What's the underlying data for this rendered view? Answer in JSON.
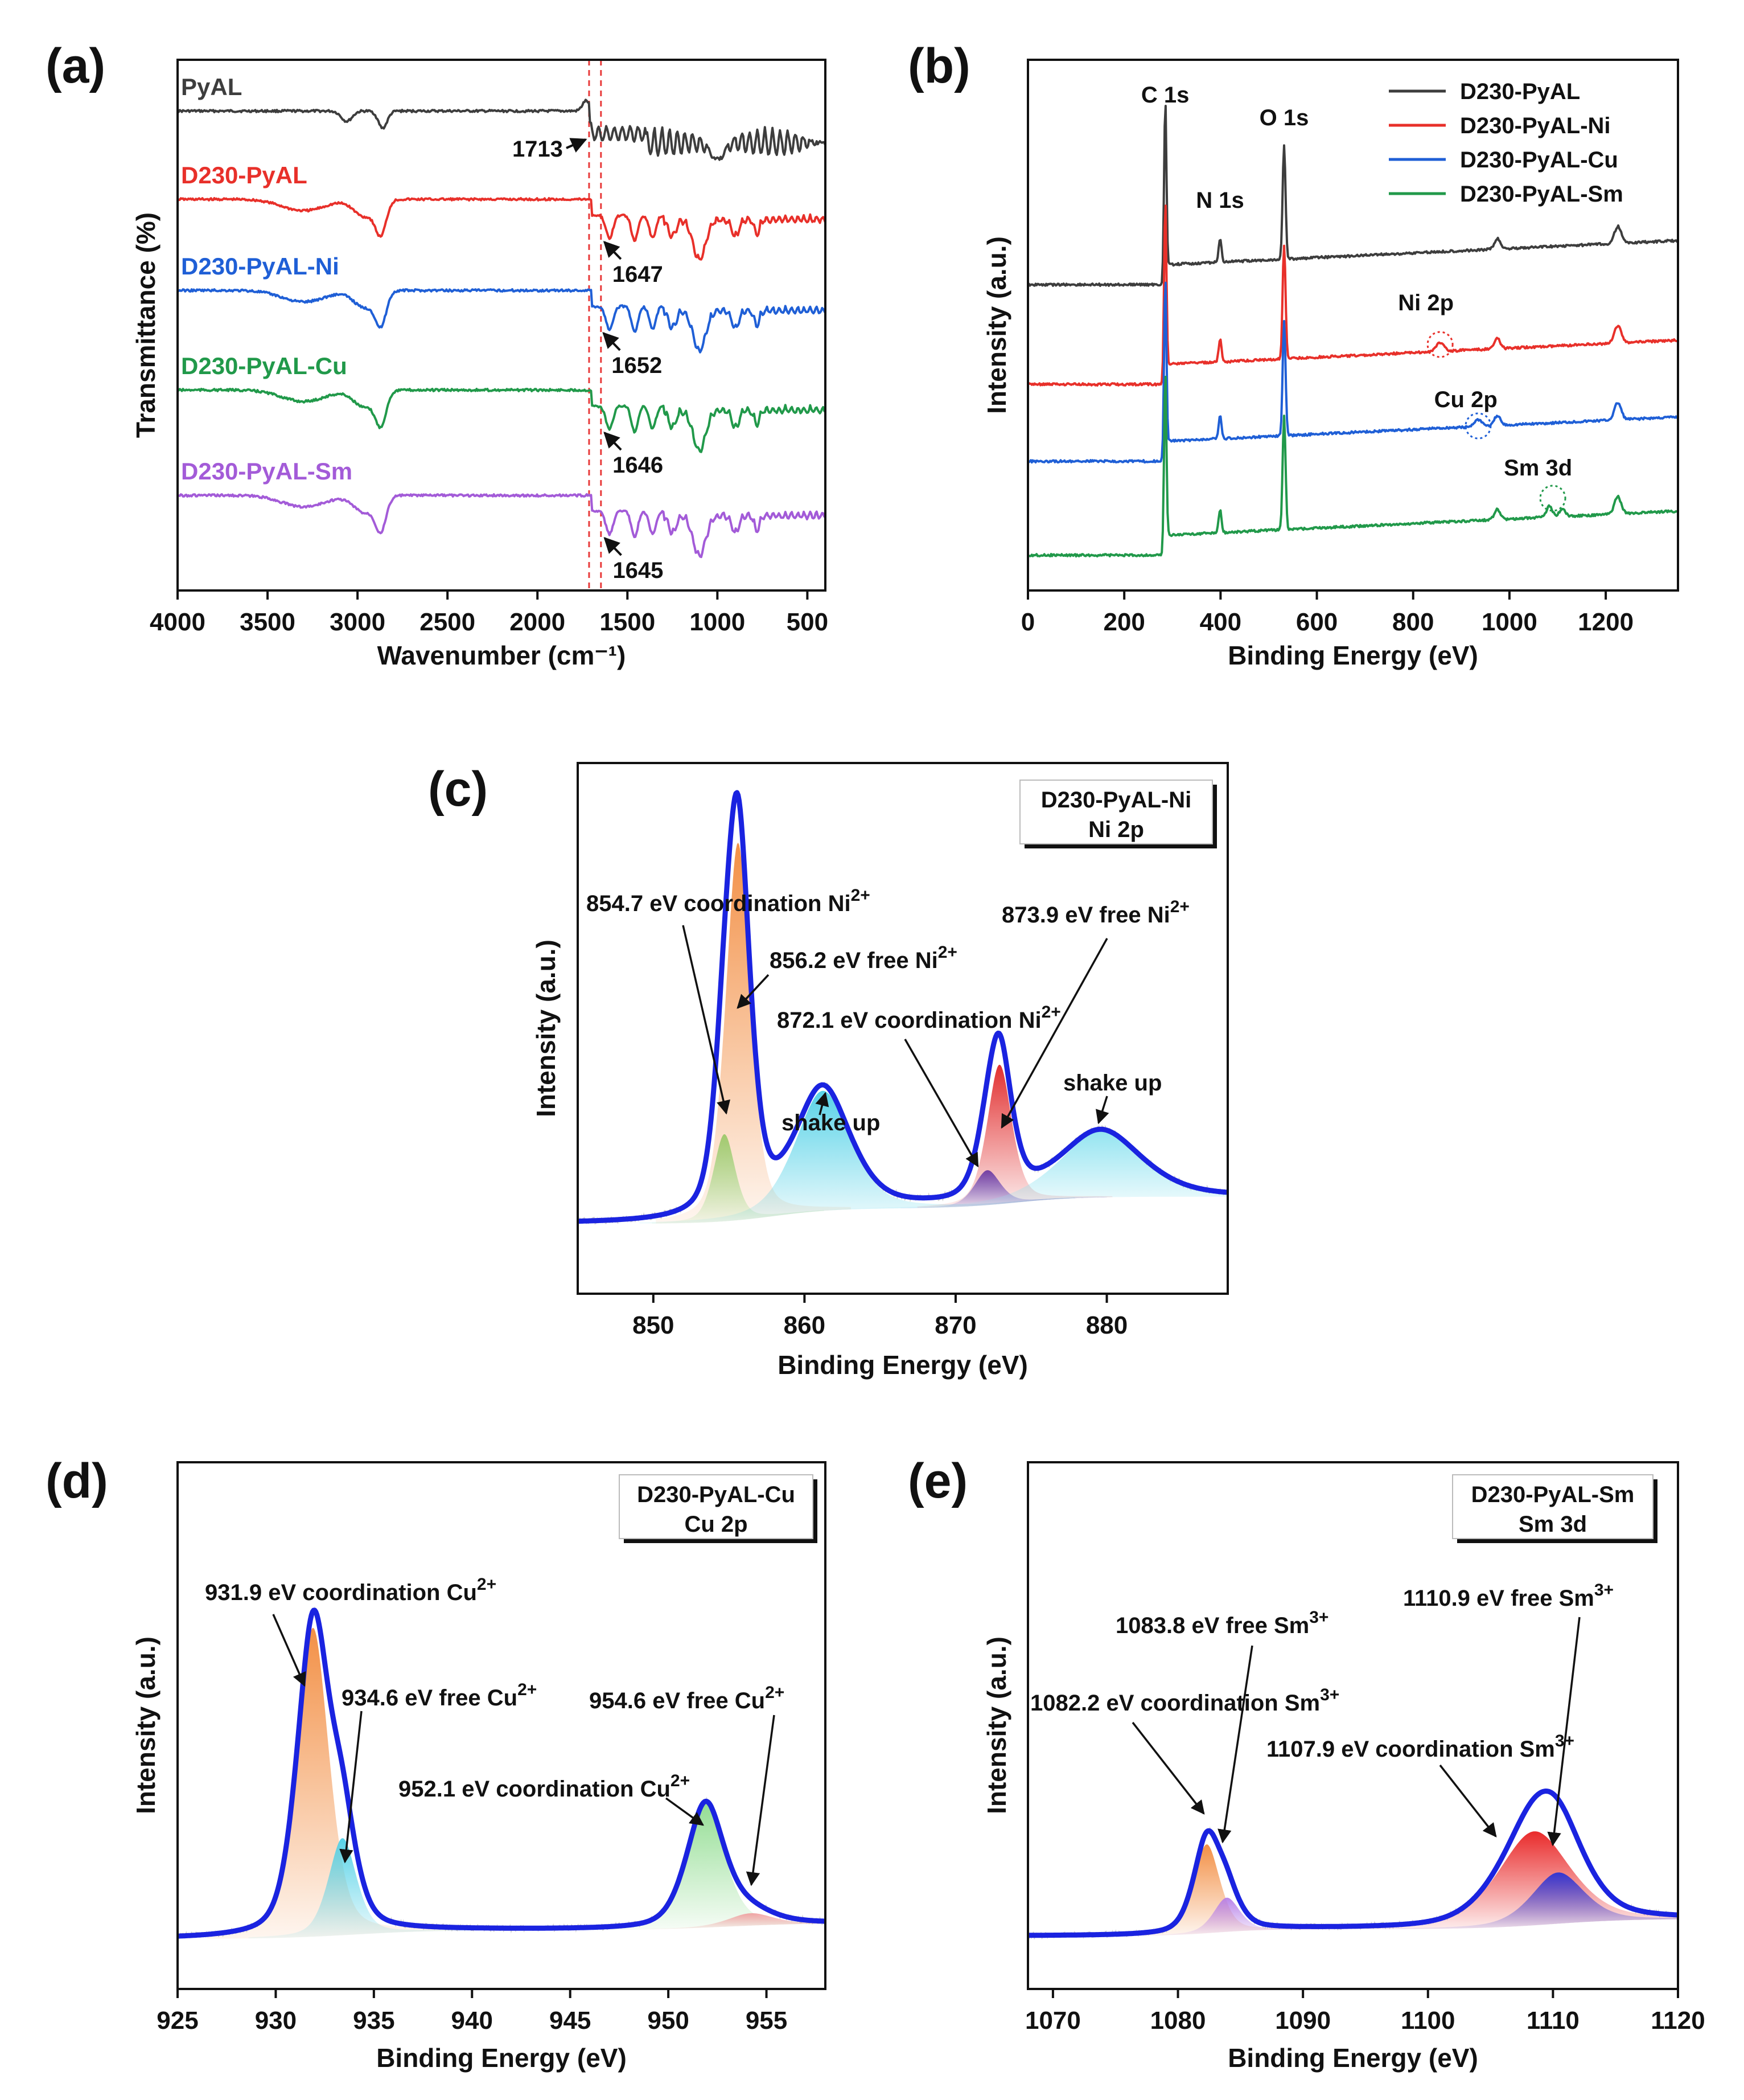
{
  "colors": {
    "axis": "#111111",
    "black_series": "#3d3d3d",
    "red_series": "#e8302a",
    "blue_series": "#1f5fd6",
    "green_series": "#21994a",
    "purple_series": "#a35bd8",
    "envelope": "#1a23e0",
    "ref_line": "#e83a3a"
  },
  "chart_data": [
    {
      "id": "a",
      "panel_label": "(a)",
      "type": "line",
      "xlabel": "Wavenumber (cm⁻¹)",
      "ylabel": "Transmittance (%)",
      "xlim": [
        4000,
        400
      ],
      "x_reversed": true,
      "x_ticks": [
        4000,
        3500,
        3000,
        2500,
        2000,
        1500,
        1000,
        500
      ],
      "y_ticks": false,
      "reference_lines": [
        1713,
        1647
      ],
      "series": [
        {
          "name": "PyAL",
          "color": "black_series",
          "offset": 0
        },
        {
          "name": "D230-PyAL",
          "color": "red_series",
          "offset": 1
        },
        {
          "name": "D230-PyAL-Ni",
          "color": "blue_series",
          "offset": 2
        },
        {
          "name": "D230-PyAL-Cu",
          "color": "green_series",
          "offset": 3
        },
        {
          "name": "D230-PyAL-Sm",
          "color": "purple_series",
          "offset": 4
        }
      ],
      "annotations": [
        {
          "text": "1713",
          "x": 1713,
          "series": 0
        },
        {
          "text": "1647",
          "x": 1647,
          "series": 1
        },
        {
          "text": "1652",
          "x": 1652,
          "series": 2
        },
        {
          "text": "1646",
          "x": 1646,
          "series": 3
        },
        {
          "text": "1645",
          "x": 1645,
          "series": 4
        }
      ]
    },
    {
      "id": "b",
      "panel_label": "(b)",
      "type": "line",
      "xlabel": "Binding Energy (eV)",
      "ylabel": "Intensity (a.u.)",
      "xlim": [
        0,
        1350
      ],
      "x_ticks": [
        0,
        200,
        400,
        600,
        800,
        1000,
        1200
      ],
      "y_ticks": false,
      "legend_position": "top-right",
      "series": [
        {
          "name": "D230-PyAL",
          "color": "black_series"
        },
        {
          "name": "D230-PyAL-Ni",
          "color": "red_series"
        },
        {
          "name": "D230-PyAL-Cu",
          "color": "blue_series"
        },
        {
          "name": "D230-PyAL-Sm",
          "color": "green_series"
        }
      ],
      "peak_labels": [
        {
          "text": "C 1s",
          "x": 285
        },
        {
          "text": "N 1s",
          "x": 399
        },
        {
          "text": "O 1s",
          "x": 532
        },
        {
          "text": "Ni 2p",
          "x": 856
        },
        {
          "text": "Cu 2p",
          "x": 933
        },
        {
          "text": "Sm 3d",
          "x": 1083
        }
      ]
    },
    {
      "id": "c",
      "panel_label": "(c)",
      "type": "line",
      "xlabel": "Binding Energy (eV)",
      "ylabel": "Intensity (a.u.)",
      "xlim": [
        845,
        888
      ],
      "x_ticks": [
        850,
        860,
        870,
        880
      ],
      "y_ticks": false,
      "box_lines": [
        "D230-PyAL-Ni",
        "Ni 2p"
      ],
      "peaks": [
        {
          "center": 854.7,
          "label": "854.7 eV  coordination Ni",
          "sup": "2+"
        },
        {
          "center": 856.2,
          "label": "856.2 eV free Ni",
          "sup": "2+"
        },
        {
          "center": 861.2,
          "label": "shake up",
          "sup": ""
        },
        {
          "center": 872.1,
          "label": "872.1 eV  coordination Ni",
          "sup": "2+"
        },
        {
          "center": 873.9,
          "label": "873.9 eV free Ni",
          "sup": "2+"
        },
        {
          "center": 879.5,
          "label": "shake up",
          "sup": ""
        }
      ]
    },
    {
      "id": "d",
      "panel_label": "(d)",
      "type": "line",
      "xlabel": "Binding Energy (eV)",
      "ylabel": "Intensity (a.u.)",
      "xlim": [
        925,
        958
      ],
      "x_ticks": [
        925,
        930,
        935,
        940,
        945,
        950,
        955
      ],
      "y_ticks": false,
      "box_lines": [
        "D230-PyAL-Cu",
        "Cu 2p"
      ],
      "peaks": [
        {
          "center": 931.9,
          "label": "931.9 eV  coordination Cu",
          "sup": "2+"
        },
        {
          "center": 934.6,
          "label": "934.6 eV free Cu",
          "sup": "2+"
        },
        {
          "center": 952.1,
          "label": "952.1 eV  coordination Cu",
          "sup": "2+"
        },
        {
          "center": 954.6,
          "label": "954.6 eV free Cu",
          "sup": "2+"
        }
      ]
    },
    {
      "id": "e",
      "panel_label": "(e)",
      "type": "line",
      "xlabel": "Binding Energy (eV)",
      "ylabel": "Intensity (a.u.)",
      "xlim": [
        1068,
        1120
      ],
      "x_ticks": [
        1070,
        1080,
        1090,
        1100,
        1110,
        1120
      ],
      "y_ticks": false,
      "box_lines": [
        "D230-PyAL-Sm",
        "Sm 3d"
      ],
      "peaks": [
        {
          "center": 1082.2,
          "label": "1082.2 eV coordination Sm",
          "sup": "3+"
        },
        {
          "center": 1083.8,
          "label": "1083.8 eV free Sm",
          "sup": "3+"
        },
        {
          "center": 1107.9,
          "label": "1107.9 eV coordination Sm",
          "sup": "3+"
        },
        {
          "center": 1110.9,
          "label": "1110.9 eV free Sm",
          "sup": "3+"
        }
      ]
    }
  ]
}
